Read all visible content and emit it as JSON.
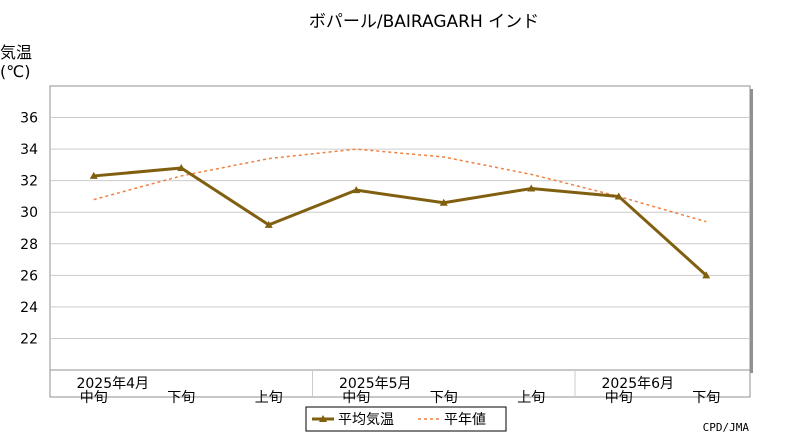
{
  "chart_data": {
    "type": "line",
    "title": "ボパール/BAIRAGARH インド",
    "ylabel": "気温",
    "ylabel_unit": "(℃)",
    "ylim": [
      20,
      38
    ],
    "yticks": [
      22,
      24,
      26,
      28,
      30,
      32,
      34,
      36
    ],
    "grid": true,
    "categories": [
      "中旬",
      "下旬",
      "上旬",
      "中旬",
      "下旬",
      "上旬",
      "中旬",
      "下旬"
    ],
    "month_labels": [
      {
        "label": "2025年4月",
        "index": 0
      },
      {
        "label": "2025年5月",
        "index": 3
      },
      {
        "label": "2025年6月",
        "index": 6
      }
    ],
    "series": [
      {
        "name": "平均気温",
        "color": "#806010",
        "style": "solid-triangle",
        "values": [
          32.3,
          32.8,
          29.2,
          31.4,
          30.6,
          31.5,
          31.0,
          26.0
        ]
      },
      {
        "name": "平年値",
        "color": "#f08040",
        "style": "dashed",
        "values": [
          30.8,
          32.3,
          33.4,
          34.0,
          33.5,
          32.4,
          31.0,
          29.4
        ]
      }
    ],
    "legend_position": "bottom-center",
    "credit": "CPD/JMA"
  }
}
